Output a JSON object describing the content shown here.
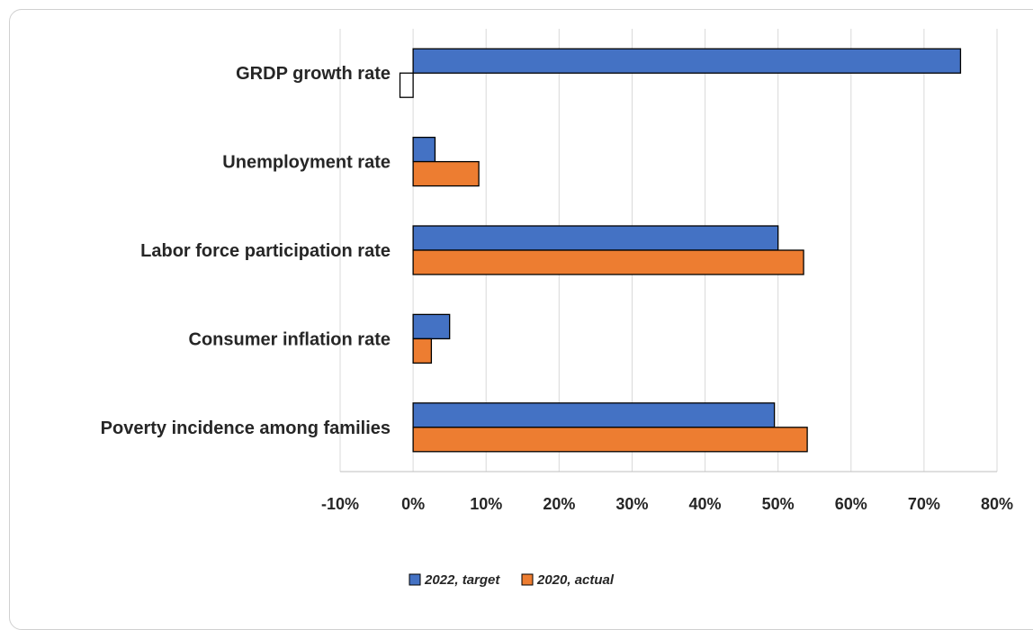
{
  "chart_data": {
    "type": "bar",
    "orientation": "horizontal",
    "title": "",
    "xlabel": "",
    "ylabel": "",
    "categories": [
      "GRDP growth rate",
      "Unemployment rate",
      "Labor force participation rate",
      "Consumer inflation rate",
      "Poverty incidence among families"
    ],
    "series": [
      {
        "name": "2022, target",
        "color": "#4472C4",
        "values": [
          75,
          3,
          50,
          5,
          49.5
        ]
      },
      {
        "name": "2020, actual",
        "color": "#ED7D31",
        "values": [
          -1.8,
          9,
          53.5,
          2.5,
          54
        ]
      }
    ],
    "special_fill": {
      "series": 1,
      "index": 0,
      "color": "#ffffff"
    },
    "xlim": [
      -10,
      80
    ],
    "xticks": [
      -10,
      0,
      10,
      20,
      30,
      40,
      50,
      60,
      70,
      80
    ],
    "tick_suffix": "%",
    "grid": true,
    "legend_position": "bottom"
  }
}
